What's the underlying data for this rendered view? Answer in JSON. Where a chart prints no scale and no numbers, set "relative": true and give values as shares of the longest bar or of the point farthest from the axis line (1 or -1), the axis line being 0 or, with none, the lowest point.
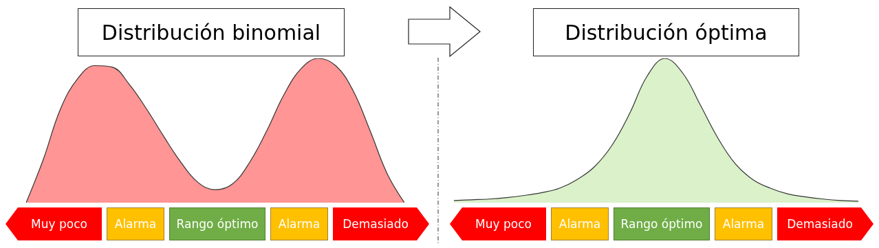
{
  "chart_data": [
    {
      "type": "area",
      "title": "Distribución binomial",
      "relative": true,
      "categories": [
        null,
        null,
        null,
        null,
        null,
        null,
        null,
        null,
        null,
        null,
        null,
        null,
        null,
        null,
        null,
        null,
        null,
        null,
        null,
        null,
        null,
        null,
        null
      ],
      "series": [
        {
          "color": "#ff8a8a",
          "values": [
            0,
            0.3,
            0.65,
            0.86,
            0.95,
            0.94,
            0.82,
            0.65,
            0.46,
            0.28,
            0.14,
            0.09,
            0.13,
            0.28,
            0.5,
            0.75,
            0.93,
            1,
            0.95,
            0.78,
            0.5,
            0.2,
            0
          ]
        }
      ],
      "annotations": [
        "Muy poco",
        "Alarma",
        "Rango óptimo",
        "Alarma",
        "Demasiado"
      ]
    },
    {
      "type": "area",
      "title": "Distribución óptima",
      "relative": true,
      "categories": [
        null,
        null,
        null,
        null,
        null,
        null,
        null,
        null,
        null,
        null,
        null,
        null,
        null,
        null,
        null,
        null,
        null,
        null,
        null,
        null,
        null,
        null,
        null,
        null
      ],
      "series": [
        {
          "color": "#d6f0c4",
          "values": [
            0.015,
            0.02,
            0.025,
            0.035,
            0.05,
            0.07,
            0.1,
            0.16,
            0.25,
            0.4,
            0.62,
            0.88,
            1,
            0.9,
            0.68,
            0.45,
            0.27,
            0.16,
            0.1,
            0.06,
            0.04,
            0.025,
            0.015,
            0.01
          ]
        }
      ],
      "annotations": [
        "Muy poco",
        "Alarma",
        "Rango óptimo",
        "Alarma",
        "Demasiado"
      ]
    }
  ]
}
